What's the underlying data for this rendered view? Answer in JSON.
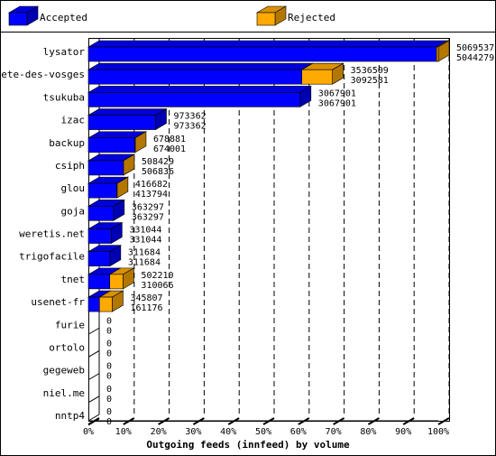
{
  "chart_data": {
    "type": "bar3d-horizontal-stacked",
    "xlabel": "Outgoing feeds (innfeed) by volume",
    "categories": [
      "lysator",
      "bete-des-vosges",
      "tsukuba",
      "izac",
      "backup",
      "csiph",
      "glou",
      "goja",
      "weretis.net",
      "trigofacile",
      "tnet",
      "usenet-fr",
      "furie",
      "ortolo",
      "gegeweb",
      "niel.me",
      "nntp4"
    ],
    "series": [
      {
        "name": "Accepted",
        "color": "#0000ff",
        "values": [
          5044279,
          3092581,
          3067901,
          973362,
          674001,
          506836,
          413794,
          363297,
          331044,
          311684,
          310066,
          161176,
          0,
          0,
          0,
          0,
          0
        ]
      },
      {
        "name": "Rejected",
        "color": "#ffaa00",
        "values": [
          25258,
          443928,
          0,
          0,
          4880,
          1593,
          2888,
          0,
          0,
          0,
          192144,
          184631,
          0,
          0,
          0,
          0,
          0
        ]
      }
    ],
    "total_labels": [
      5069537,
      3536509,
      3067901,
      973362,
      678881,
      508429,
      416682,
      363297,
      331044,
      311684,
      502210,
      345807,
      0,
      0,
      0,
      0,
      0
    ],
    "xlim": [
      0,
      5069537
    ],
    "xticks": [
      {
        "value": 0,
        "label": "0%"
      },
      {
        "value": 506953.7,
        "label": "10%"
      },
      {
        "value": 1013907.4,
        "label": "20%"
      },
      {
        "value": 1520861.1,
        "label": "30%"
      },
      {
        "value": 2027814.8,
        "label": "40%"
      },
      {
        "value": 2534768.5,
        "label": "50%"
      },
      {
        "value": 3041722.2,
        "label": "60%"
      },
      {
        "value": 3548675.9,
        "label": "70%"
      },
      {
        "value": 4055629.6,
        "label": "80%"
      },
      {
        "value": 4562583.3,
        "label": "90%"
      },
      {
        "value": 5069537,
        "label": "100%"
      }
    ],
    "grid": true
  }
}
